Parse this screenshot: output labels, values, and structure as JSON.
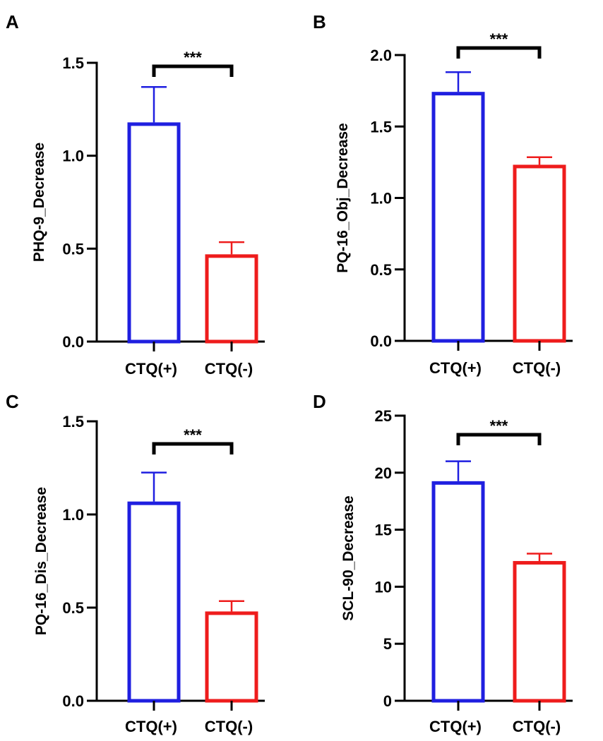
{
  "colors": {
    "positive": "#1f1fe0",
    "negative": "#ee1c1c",
    "axis": "#000000"
  },
  "chart_data": [
    {
      "panel": "A",
      "type": "bar",
      "categories": [
        "CTQ(+)",
        "CTQ(-)"
      ],
      "values": [
        1.17,
        0.46
      ],
      "errors": [
        0.2,
        0.075
      ],
      "ylabel": "PHQ-9_Decrease",
      "ylim": [
        0,
        1.5
      ],
      "yticks": [
        0,
        0.5,
        1.0,
        1.5
      ],
      "ytick_labels": [
        "0.0",
        "0.5",
        "1.0",
        "1.5"
      ],
      "significance": "***"
    },
    {
      "panel": "B",
      "type": "bar",
      "categories": [
        "CTQ(+)",
        "CTQ(-)"
      ],
      "values": [
        1.73,
        1.22
      ],
      "errors": [
        0.15,
        0.065
      ],
      "ylabel": "PQ-16_Obj_Decrease",
      "ylim": [
        0,
        2.0
      ],
      "yticks": [
        0,
        0.5,
        1.0,
        1.5,
        2.0
      ],
      "ytick_labels": [
        "0.0",
        "0.5",
        "1.0",
        "1.5",
        "2.0"
      ],
      "significance": "***"
    },
    {
      "panel": "C",
      "type": "bar",
      "categories": [
        "CTQ(+)",
        "CTQ(-)"
      ],
      "values": [
        1.06,
        0.47
      ],
      "errors": [
        0.165,
        0.065
      ],
      "ylabel": "PQ-16_Dis_Decrease",
      "ylim": [
        0,
        1.5
      ],
      "yticks": [
        0,
        0.5,
        1.0,
        1.5
      ],
      "ytick_labels": [
        "0.0",
        "0.5",
        "1.0",
        "1.5"
      ],
      "significance": "***"
    },
    {
      "panel": "D",
      "type": "bar",
      "categories": [
        "CTQ(+)",
        "CTQ(-)"
      ],
      "values": [
        19.1,
        12.1
      ],
      "errors": [
        1.9,
        0.8
      ],
      "ylabel": "SCL-90_Decrease",
      "ylim": [
        0,
        25
      ],
      "yticks": [
        0,
        5,
        10,
        15,
        20,
        25
      ],
      "ytick_labels": [
        "0",
        "5",
        "10",
        "15",
        "20",
        "25"
      ],
      "significance": "***"
    }
  ]
}
